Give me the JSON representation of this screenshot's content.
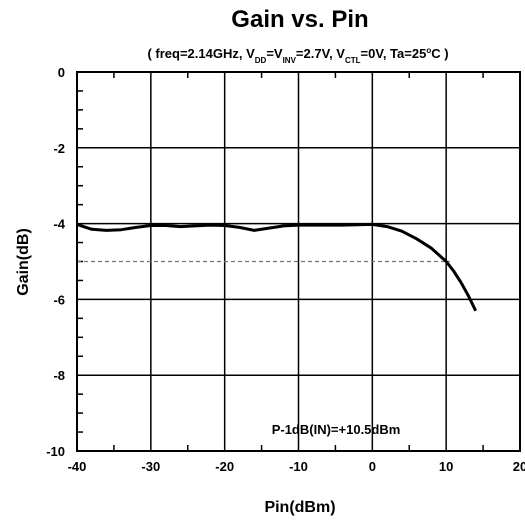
{
  "chart_data": {
    "type": "line",
    "title": "Gain vs. Pin",
    "subtitle": {
      "p1": "( freq=2.14GHz, V",
      "s1": "DD",
      "p2": "=V",
      "s2": "INV",
      "p3": "=2.7V, V",
      "s3": "CTL",
      "p4": "=0V, Ta=25",
      "deg": "o",
      "p5": "C )"
    },
    "xlabel": "Pin(dBm)",
    "ylabel": "Gain(dB)",
    "xlim": [
      -40,
      20
    ],
    "ylim": [
      -10,
      0
    ],
    "xticks": [
      -40,
      -30,
      -20,
      -10,
      0,
      10,
      20
    ],
    "xtick_labels": [
      "-40",
      "-30",
      "-20",
      "-10",
      "0",
      "10",
      "20"
    ],
    "yticks": [
      0,
      -2,
      -4,
      -6,
      -8,
      -10
    ],
    "ytick_labels": [
      "0",
      "-2",
      "-4",
      "-6",
      "-8",
      "-10"
    ],
    "grid": true,
    "series": [
      {
        "x": [
          -40,
          -38,
          -36,
          -34,
          -32,
          -30,
          -28,
          -26,
          -24,
          -22,
          -20,
          -18,
          -16,
          -14,
          -12,
          -10,
          -8,
          -6,
          -4,
          -2,
          0,
          2,
          4,
          6,
          8,
          10,
          11,
          12,
          13,
          14
        ],
        "y": [
          -4.02,
          -4.15,
          -4.18,
          -4.16,
          -4.1,
          -4.05,
          -4.05,
          -4.08,
          -4.06,
          -4.04,
          -4.05,
          -4.1,
          -4.18,
          -4.12,
          -4.06,
          -4.04,
          -4.04,
          -4.04,
          -4.04,
          -4.03,
          -4.02,
          -4.08,
          -4.2,
          -4.4,
          -4.65,
          -5.0,
          -5.25,
          -5.55,
          -5.9,
          -6.3
        ],
        "color": "#000000"
      }
    ],
    "reference_line": {
      "y": -5,
      "x_end": 10.5,
      "style": "dashed"
    },
    "annotation": "P-1dB(IN)=+10.5dBm"
  }
}
